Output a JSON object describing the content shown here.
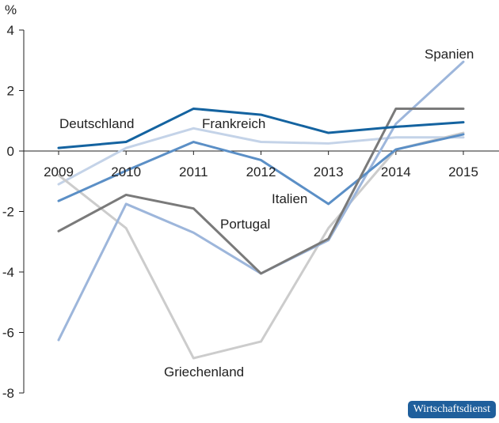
{
  "chart_data": {
    "type": "line",
    "ylabel": "%",
    "ylim": [
      -8,
      4
    ],
    "yticks": [
      4,
      2,
      0,
      -2,
      -4,
      -6,
      -8
    ],
    "x": [
      "2009",
      "2010",
      "2011",
      "2012",
      "2013",
      "2014",
      "2015"
    ],
    "grid": false,
    "series": [
      {
        "name": "Deutschland",
        "color": "#1463a0",
        "values": [
          0.1,
          0.3,
          1.4,
          1.2,
          0.6,
          0.8,
          0.95
        ]
      },
      {
        "name": "Frankreich",
        "color": "#c4d3e8",
        "values": [
          -1.1,
          0.1,
          0.75,
          0.3,
          0.25,
          0.45,
          0.45
        ]
      },
      {
        "name": "Italien",
        "color": "#5b8fc6",
        "values": [
          -1.65,
          -0.65,
          0.3,
          -0.3,
          -1.75,
          0.05,
          0.55
        ]
      },
      {
        "name": "Portugal",
        "color": "#7a7a7a",
        "values": [
          -2.65,
          -1.45,
          -1.9,
          -4.05,
          -2.9,
          1.4,
          1.4
        ]
      },
      {
        "name": "Spanien",
        "color": "#9db6db",
        "values": [
          -6.25,
          -1.75,
          -2.7,
          -4.05,
          -2.95,
          0.9,
          2.95
        ]
      },
      {
        "name": "Griechenland",
        "color": "#cccccc",
        "values": [
          -0.8,
          -2.55,
          -6.85,
          -6.3,
          -2.55,
          0.05,
          0.6
        ]
      }
    ]
  },
  "badge": {
    "text": "Wirtschaftsdienst"
  }
}
